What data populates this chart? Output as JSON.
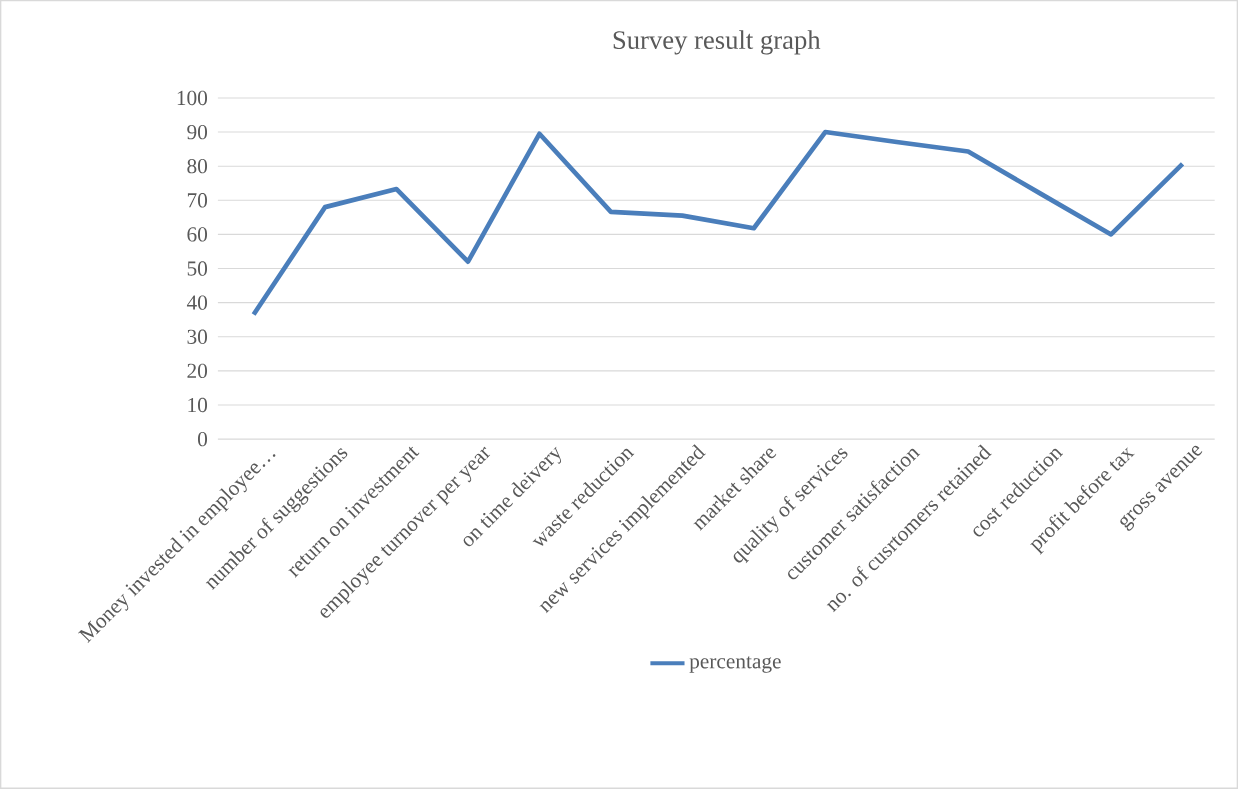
{
  "chart_data": {
    "type": "line",
    "title": "Survey result graph",
    "categories": [
      "Money invested in employee…",
      "number of suggestions",
      "return on investment",
      "employee turnover per year",
      "on time deivery",
      "waste reduction",
      "new services implemented",
      "market share",
      "quality of services",
      "customer satisfaction",
      "no. of cusrtomers retained",
      "cost reduction",
      "profit before tax",
      "gross avenue"
    ],
    "series": [
      {
        "name": "percentage",
        "color": "#4a7ebb",
        "values": [
          36.5,
          68,
          73.3,
          52,
          89.5,
          66.6,
          65.5,
          61.8,
          90,
          87.1,
          84.3,
          72.1,
          60,
          80.7
        ]
      }
    ],
    "ylim": [
      0,
      100
    ],
    "yticks": [
      0,
      10,
      20,
      30,
      40,
      50,
      60,
      70,
      80,
      90,
      100
    ],
    "grid": "y",
    "legend": "bottom",
    "marker": "none",
    "line_style": "solid"
  }
}
